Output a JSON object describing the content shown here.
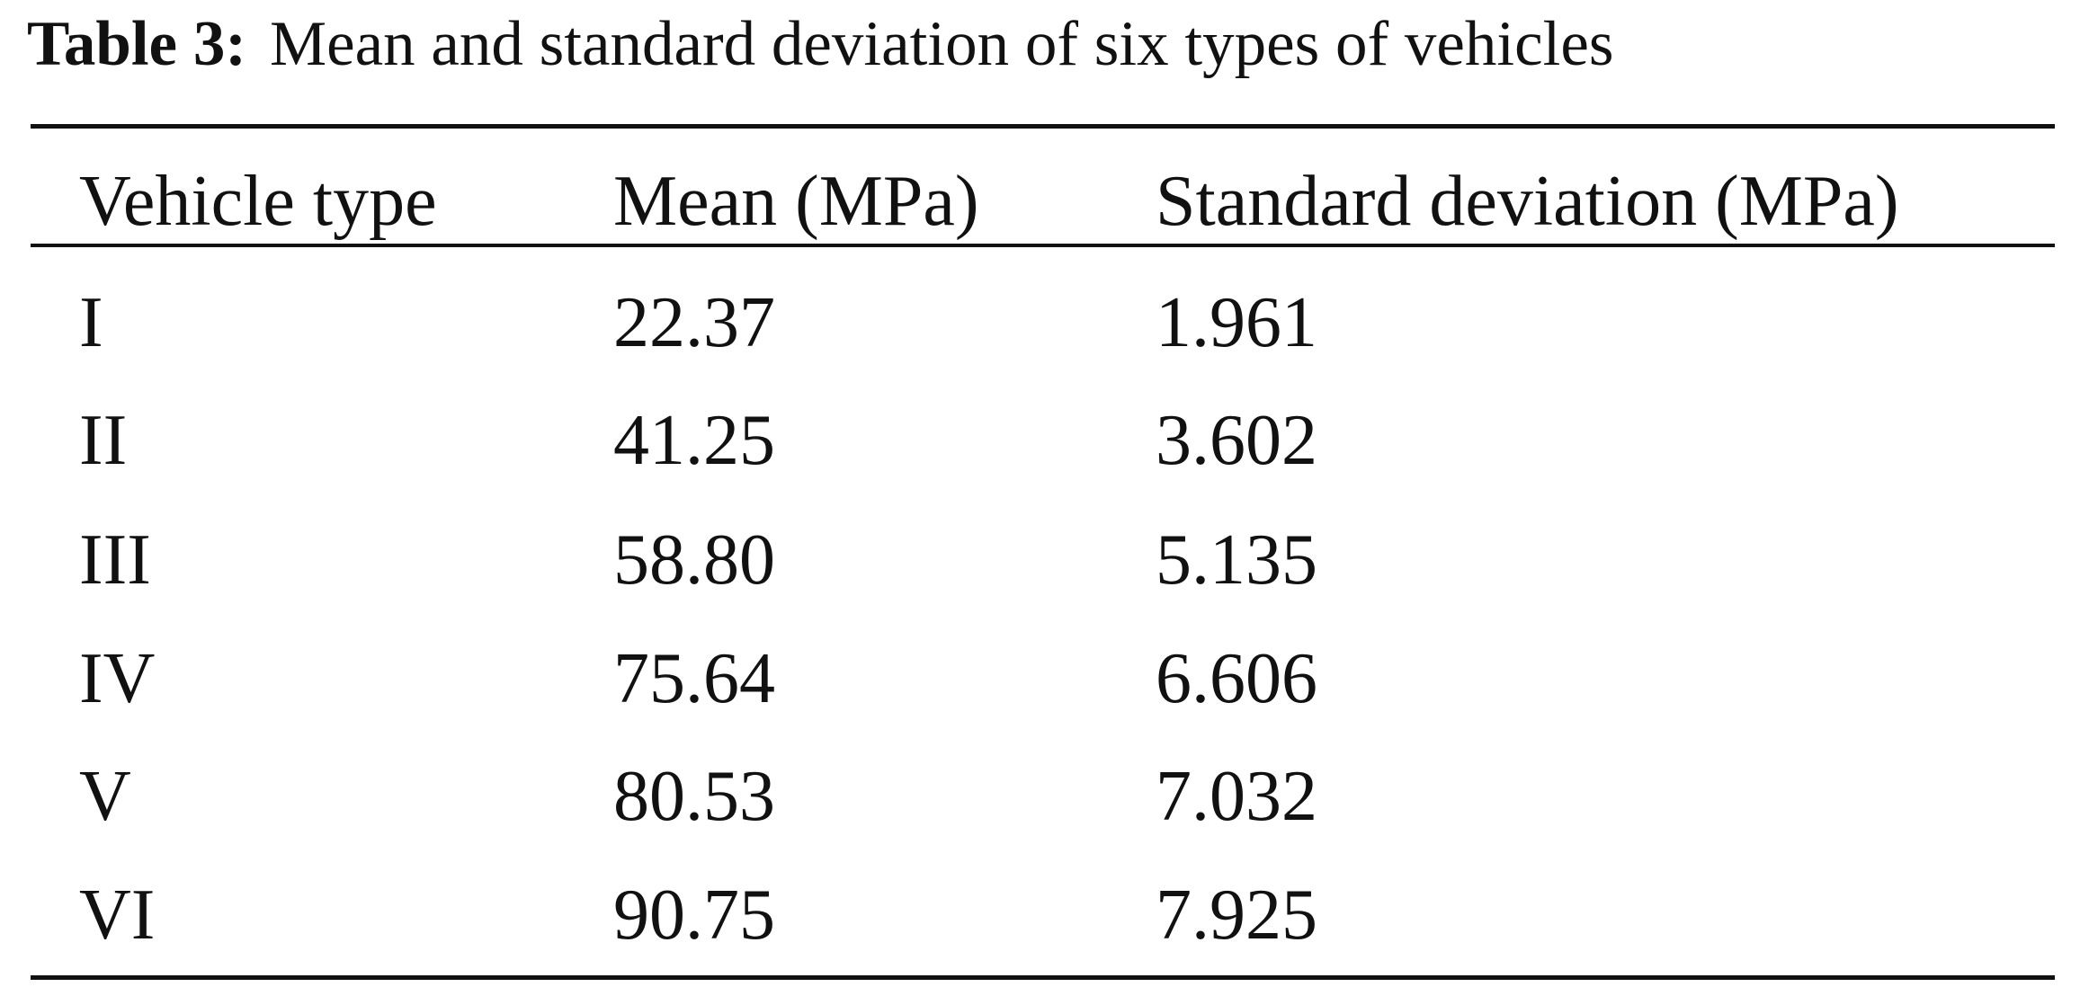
{
  "caption": {
    "label": "Table 3:",
    "text": "Mean and standard deviation of six types of vehicles"
  },
  "table": {
    "columns": [
      "Vehicle type",
      "Mean (MPa)",
      "Standard deviation (MPa)"
    ],
    "rows": [
      [
        "I",
        "22.37",
        "1.961"
      ],
      [
        "II",
        "41.25",
        "3.602"
      ],
      [
        "III",
        "58.80",
        "5.135"
      ],
      [
        "IV",
        "75.64",
        "6.606"
      ],
      [
        "V",
        "80.53",
        "7.032"
      ],
      [
        "VI",
        "90.75",
        "7.925"
      ]
    ]
  }
}
